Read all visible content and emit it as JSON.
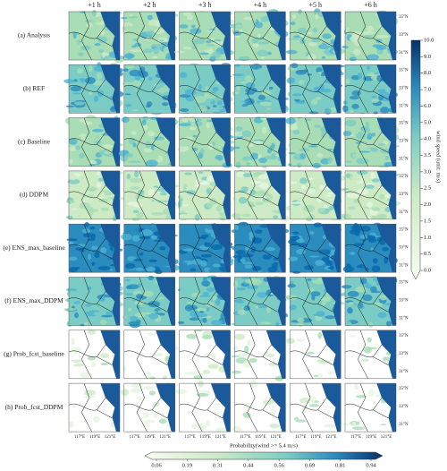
{
  "columns": [
    "+1 h",
    "+2 h",
    "+3 h",
    "+4 h",
    "+5 h",
    "+6 h"
  ],
  "rows": [
    "(a)  Analysis",
    "(b)  REF",
    "(c)  Baseline",
    "(d)  DDPM",
    "(e)  ENS_max_baseline",
    "(f)  ENS_max_DDPM",
    "(g)  Prob_fcst_baseline",
    "(h)  Prob_fcst_DDPM"
  ],
  "lat_labels": [
    "35°N",
    "33°N",
    "31°N"
  ],
  "lon_labels": [
    "117°E",
    "119°E",
    "121°E"
  ],
  "wind_colorbar": {
    "label": "wind speed (unit: m/s)",
    "ticks": [
      "10.0",
      "9.0",
      "8.0",
      "7.0",
      "6.0",
      "5.0",
      "4.0",
      "3.5",
      "3.0",
      "2.5",
      "2.0",
      "1.5",
      "1.0",
      "0.5",
      "0.0"
    ]
  },
  "prob_colorbar": {
    "label": "Probability(wind >= 5.4 m/s)",
    "ticks": [
      "0.06",
      "0.19",
      "0.31",
      "0.44",
      "0.56",
      "0.69",
      "0.81",
      "0.94"
    ]
  }
}
